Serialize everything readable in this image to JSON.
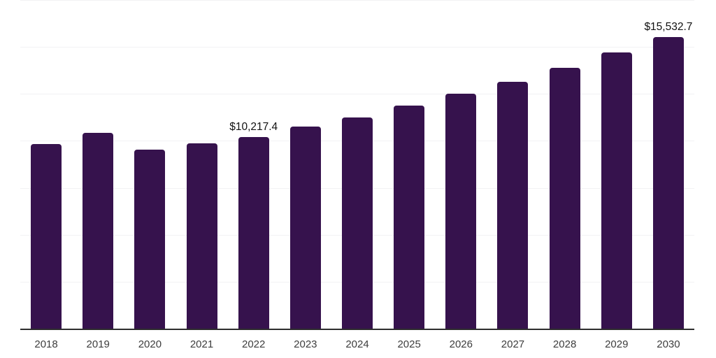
{
  "chart_data": {
    "type": "bar",
    "title": "",
    "xlabel": "",
    "ylabel": "",
    "categories": [
      "2018",
      "2019",
      "2020",
      "2021",
      "2022",
      "2023",
      "2024",
      "2025",
      "2026",
      "2027",
      "2028",
      "2029",
      "2030"
    ],
    "values": [
      9845,
      10430,
      9525,
      9855,
      10217.4,
      10745,
      11260,
      11870,
      12510,
      13150,
      13890,
      14690,
      15532.7
    ],
    "ylim": [
      0,
      17500
    ],
    "gridline_step": 2500,
    "grid": true,
    "legend": "none",
    "data_labels": [
      {
        "category_index": 4,
        "text": "$10,217.4"
      },
      {
        "category_index": 12,
        "text": "$15,532.7"
      }
    ],
    "colors": {
      "bar": "#36124d",
      "gridline": "#f2f2f4",
      "axis_line": "#2e2e2e",
      "tick_label": "#3d3d3d",
      "data_label": "#111111",
      "background": "#ffffff"
    }
  }
}
